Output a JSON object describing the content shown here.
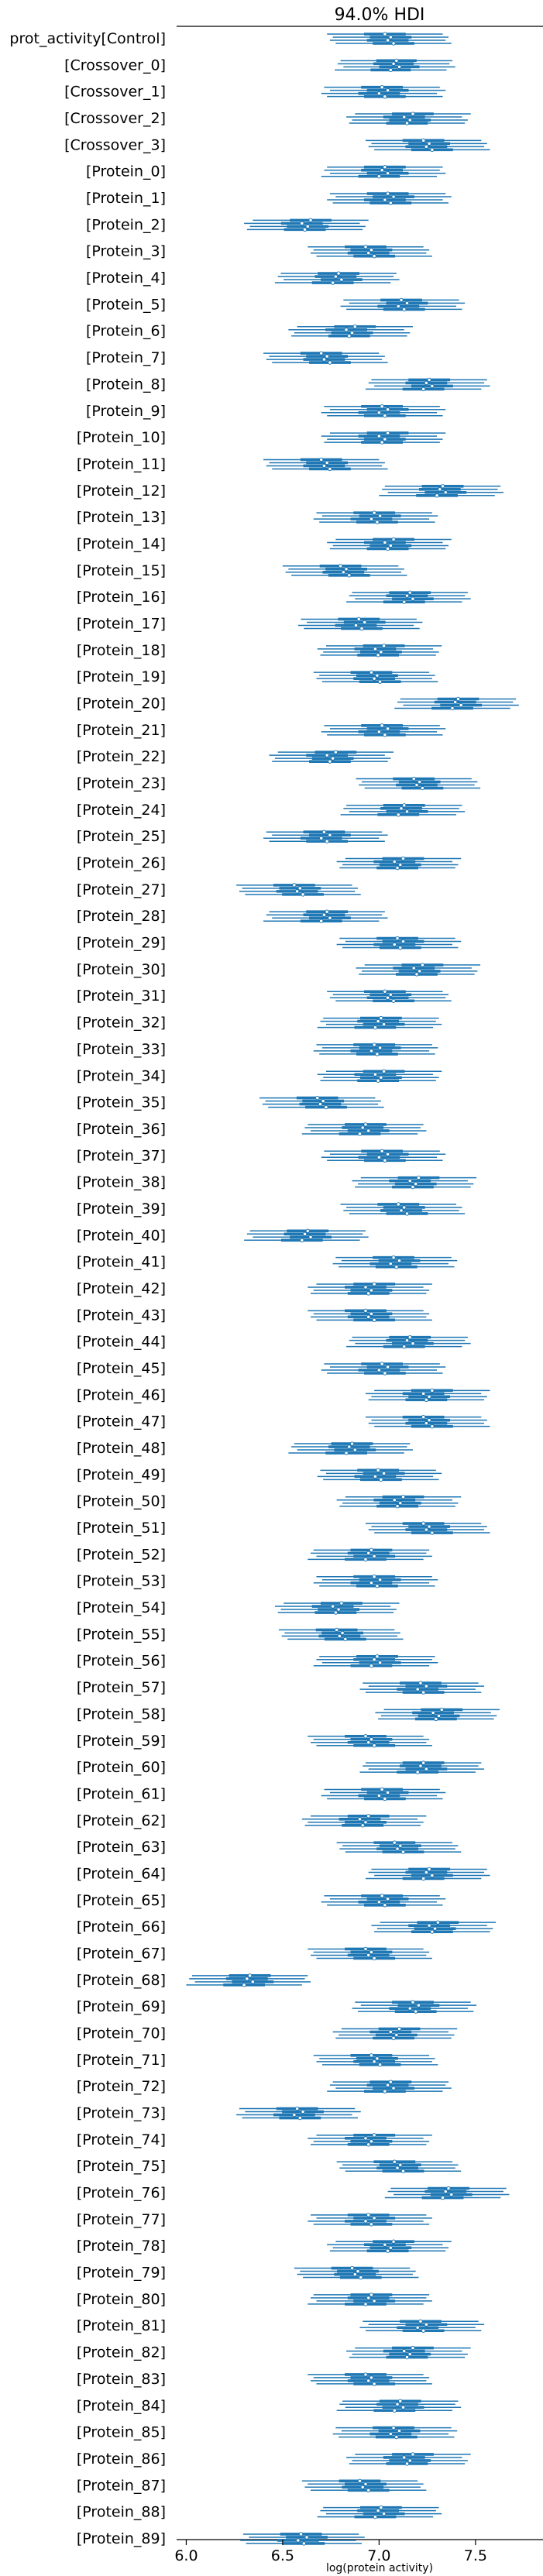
{
  "chart_data": {
    "type": "forest",
    "title": "94.0% HDI",
    "xlabel": "log(protein activity)",
    "ylabel": "",
    "xlim": [
      5.95,
      7.85
    ],
    "xticks": [
      "6.0",
      "6.5",
      "7.0",
      "7.5"
    ],
    "xtick_values": [
      6.0,
      6.5,
      7.0,
      7.5
    ],
    "grid": false,
    "series_color": "#1f77b4",
    "chains_per_row": 4,
    "rows": [
      {
        "label": "prot_activity[Control]",
        "mean": 7.05,
        "hdi": [
          6.75,
          7.35
        ]
      },
      {
        "label": "[Crossover_0]",
        "mean": 7.08,
        "hdi": [
          6.8,
          7.38
        ]
      },
      {
        "label": "[Crossover_1]",
        "mean": 7.02,
        "hdi": [
          6.72,
          7.32
        ]
      },
      {
        "label": "[Crossover_2]",
        "mean": 7.15,
        "hdi": [
          6.85,
          7.45
        ]
      },
      {
        "label": "[Crossover_3]",
        "mean": 7.25,
        "hdi": [
          6.95,
          7.55
        ]
      },
      {
        "label": "[Protein_0]",
        "mean": 7.02,
        "hdi": [
          6.72,
          7.32
        ]
      },
      {
        "label": "[Protein_1]",
        "mean": 7.05,
        "hdi": [
          6.75,
          7.35
        ]
      },
      {
        "label": "[Protein_2]",
        "mean": 6.62,
        "hdi": [
          6.32,
          6.92
        ]
      },
      {
        "label": "[Protein_3]",
        "mean": 6.95,
        "hdi": [
          6.65,
          7.25
        ]
      },
      {
        "label": "[Protein_4]",
        "mean": 6.78,
        "hdi": [
          6.48,
          7.08
        ]
      },
      {
        "label": "[Protein_5]",
        "mean": 7.12,
        "hdi": [
          6.82,
          7.42
        ]
      },
      {
        "label": "[Protein_6]",
        "mean": 6.85,
        "hdi": [
          6.55,
          7.15
        ]
      },
      {
        "label": "[Protein_7]",
        "mean": 6.72,
        "hdi": [
          6.42,
          7.02
        ]
      },
      {
        "label": "[Protein_8]",
        "mean": 7.25,
        "hdi": [
          6.95,
          7.55
        ]
      },
      {
        "label": "[Protein_9]",
        "mean": 7.02,
        "hdi": [
          6.72,
          7.32
        ]
      },
      {
        "label": "[Protein_10]",
        "mean": 7.02,
        "hdi": [
          6.72,
          7.32
        ]
      },
      {
        "label": "[Protein_11]",
        "mean": 6.72,
        "hdi": [
          6.42,
          7.02
        ]
      },
      {
        "label": "[Protein_12]",
        "mean": 7.32,
        "hdi": [
          7.02,
          7.62
        ]
      },
      {
        "label": "[Protein_13]",
        "mean": 6.98,
        "hdi": [
          6.68,
          7.28
        ]
      },
      {
        "label": "[Protein_14]",
        "mean": 7.05,
        "hdi": [
          6.75,
          7.35
        ]
      },
      {
        "label": "[Protein_15]",
        "mean": 6.82,
        "hdi": [
          6.52,
          7.12
        ]
      },
      {
        "label": "[Protein_16]",
        "mean": 7.15,
        "hdi": [
          6.85,
          7.45
        ]
      },
      {
        "label": "[Protein_17]",
        "mean": 6.9,
        "hdi": [
          6.6,
          7.2
        ]
      },
      {
        "label": "[Protein_18]",
        "mean": 7.0,
        "hdi": [
          6.7,
          7.3
        ]
      },
      {
        "label": "[Protein_19]",
        "mean": 6.98,
        "hdi": [
          6.68,
          7.28
        ]
      },
      {
        "label": "[Protein_20]",
        "mean": 7.4,
        "hdi": [
          7.1,
          7.7
        ]
      },
      {
        "label": "[Protein_21]",
        "mean": 7.02,
        "hdi": [
          6.72,
          7.32
        ]
      },
      {
        "label": "[Protein_22]",
        "mean": 6.75,
        "hdi": [
          6.45,
          7.05
        ]
      },
      {
        "label": "[Protein_23]",
        "mean": 7.2,
        "hdi": [
          6.9,
          7.5
        ]
      },
      {
        "label": "[Protein_24]",
        "mean": 7.12,
        "hdi": [
          6.82,
          7.42
        ]
      },
      {
        "label": "[Protein_25]",
        "mean": 6.72,
        "hdi": [
          6.42,
          7.02
        ]
      },
      {
        "label": "[Protein_26]",
        "mean": 7.1,
        "hdi": [
          6.8,
          7.4
        ]
      },
      {
        "label": "[Protein_27]",
        "mean": 6.58,
        "hdi": [
          6.28,
          6.88
        ]
      },
      {
        "label": "[Protein_28]",
        "mean": 6.72,
        "hdi": [
          6.42,
          7.02
        ]
      },
      {
        "label": "[Protein_29]",
        "mean": 7.1,
        "hdi": [
          6.8,
          7.4
        ]
      },
      {
        "label": "[Protein_30]",
        "mean": 7.2,
        "hdi": [
          6.9,
          7.5
        ]
      },
      {
        "label": "[Protein_31]",
        "mean": 7.05,
        "hdi": [
          6.75,
          7.35
        ]
      },
      {
        "label": "[Protein_32]",
        "mean": 7.0,
        "hdi": [
          6.7,
          7.3
        ]
      },
      {
        "label": "[Protein_33]",
        "mean": 6.98,
        "hdi": [
          6.68,
          7.28
        ]
      },
      {
        "label": "[Protein_34]",
        "mean": 7.0,
        "hdi": [
          6.7,
          7.3
        ]
      },
      {
        "label": "[Protein_35]",
        "mean": 6.7,
        "hdi": [
          6.4,
          7.0
        ]
      },
      {
        "label": "[Protein_36]",
        "mean": 6.92,
        "hdi": [
          6.62,
          7.22
        ]
      },
      {
        "label": "[Protein_37]",
        "mean": 7.02,
        "hdi": [
          6.72,
          7.32
        ]
      },
      {
        "label": "[Protein_38]",
        "mean": 7.18,
        "hdi": [
          6.88,
          7.48
        ]
      },
      {
        "label": "[Protein_39]",
        "mean": 7.12,
        "hdi": [
          6.82,
          7.42
        ]
      },
      {
        "label": "[Protein_40]",
        "mean": 6.62,
        "hdi": [
          6.32,
          6.92
        ]
      },
      {
        "label": "[Protein_41]",
        "mean": 7.08,
        "hdi": [
          6.78,
          7.38
        ]
      },
      {
        "label": "[Protein_42]",
        "mean": 6.95,
        "hdi": [
          6.65,
          7.25
        ]
      },
      {
        "label": "[Protein_43]",
        "mean": 6.95,
        "hdi": [
          6.65,
          7.25
        ]
      },
      {
        "label": "[Protein_44]",
        "mean": 7.15,
        "hdi": [
          6.85,
          7.45
        ]
      },
      {
        "label": "[Protein_45]",
        "mean": 7.02,
        "hdi": [
          6.72,
          7.32
        ]
      },
      {
        "label": "[Protein_46]",
        "mean": 7.25,
        "hdi": [
          6.95,
          7.55
        ]
      },
      {
        "label": "[Protein_47]",
        "mean": 7.25,
        "hdi": [
          6.95,
          7.55
        ]
      },
      {
        "label": "[Protein_48]",
        "mean": 6.85,
        "hdi": [
          6.55,
          7.15
        ]
      },
      {
        "label": "[Protein_49]",
        "mean": 7.0,
        "hdi": [
          6.7,
          7.3
        ]
      },
      {
        "label": "[Protein_50]",
        "mean": 7.1,
        "hdi": [
          6.8,
          7.4
        ]
      },
      {
        "label": "[Protein_51]",
        "mean": 7.25,
        "hdi": [
          6.95,
          7.55
        ]
      },
      {
        "label": "[Protein_52]",
        "mean": 6.95,
        "hdi": [
          6.65,
          7.25
        ]
      },
      {
        "label": "[Protein_53]",
        "mean": 6.98,
        "hdi": [
          6.68,
          7.28
        ]
      },
      {
        "label": "[Protein_54]",
        "mean": 6.78,
        "hdi": [
          6.48,
          7.08
        ]
      },
      {
        "label": "[Protein_55]",
        "mean": 6.8,
        "hdi": [
          6.5,
          7.1
        ]
      },
      {
        "label": "[Protein_56]",
        "mean": 6.98,
        "hdi": [
          6.68,
          7.28
        ]
      },
      {
        "label": "[Protein_57]",
        "mean": 7.22,
        "hdi": [
          6.92,
          7.52
        ]
      },
      {
        "label": "[Protein_58]",
        "mean": 7.3,
        "hdi": [
          7.0,
          7.6
        ]
      },
      {
        "label": "[Protein_59]",
        "mean": 6.95,
        "hdi": [
          6.65,
          7.25
        ]
      },
      {
        "label": "[Protein_60]",
        "mean": 7.22,
        "hdi": [
          6.92,
          7.52
        ]
      },
      {
        "label": "[Protein_61]",
        "mean": 7.02,
        "hdi": [
          6.72,
          7.32
        ]
      },
      {
        "label": "[Protein_62]",
        "mean": 6.92,
        "hdi": [
          6.62,
          7.22
        ]
      },
      {
        "label": "[Protein_63]",
        "mean": 7.1,
        "hdi": [
          6.8,
          7.4
        ]
      },
      {
        "label": "[Protein_64]",
        "mean": 7.25,
        "hdi": [
          6.95,
          7.55
        ]
      },
      {
        "label": "[Protein_65]",
        "mean": 7.02,
        "hdi": [
          6.72,
          7.32
        ]
      },
      {
        "label": "[Protein_66]",
        "mean": 7.28,
        "hdi": [
          6.98,
          7.58
        ]
      },
      {
        "label": "[Protein_67]",
        "mean": 6.95,
        "hdi": [
          6.65,
          7.25
        ]
      },
      {
        "label": "[Protein_68]",
        "mean": 6.32,
        "hdi": [
          6.02,
          6.62
        ]
      },
      {
        "label": "[Protein_69]",
        "mean": 7.18,
        "hdi": [
          6.88,
          7.48
        ]
      },
      {
        "label": "[Protein_70]",
        "mean": 7.08,
        "hdi": [
          6.78,
          7.38
        ]
      },
      {
        "label": "[Protein_71]",
        "mean": 6.98,
        "hdi": [
          6.68,
          7.28
        ]
      },
      {
        "label": "[Protein_72]",
        "mean": 7.05,
        "hdi": [
          6.75,
          7.35
        ]
      },
      {
        "label": "[Protein_73]",
        "mean": 6.58,
        "hdi": [
          6.28,
          6.88
        ]
      },
      {
        "label": "[Protein_74]",
        "mean": 6.95,
        "hdi": [
          6.65,
          7.25
        ]
      },
      {
        "label": "[Protein_75]",
        "mean": 7.1,
        "hdi": [
          6.8,
          7.4
        ]
      },
      {
        "label": "[Protein_76]",
        "mean": 7.35,
        "hdi": [
          7.05,
          7.65
        ]
      },
      {
        "label": "[Protein_77]",
        "mean": 6.95,
        "hdi": [
          6.65,
          7.25
        ]
      },
      {
        "label": "[Protein_78]",
        "mean": 7.05,
        "hdi": [
          6.75,
          7.35
        ]
      },
      {
        "label": "[Protein_79]",
        "mean": 6.88,
        "hdi": [
          6.58,
          7.18
        ]
      },
      {
        "label": "[Protein_80]",
        "mean": 6.95,
        "hdi": [
          6.65,
          7.25
        ]
      },
      {
        "label": "[Protein_81]",
        "mean": 7.22,
        "hdi": [
          6.92,
          7.52
        ]
      },
      {
        "label": "[Protein_82]",
        "mean": 7.15,
        "hdi": [
          6.85,
          7.45
        ]
      },
      {
        "label": "[Protein_83]",
        "mean": 6.95,
        "hdi": [
          6.65,
          7.25
        ]
      },
      {
        "label": "[Protein_84]",
        "mean": 7.1,
        "hdi": [
          6.8,
          7.4
        ]
      },
      {
        "label": "[Protein_85]",
        "mean": 7.08,
        "hdi": [
          6.78,
          7.38
        ]
      },
      {
        "label": "[Protein_86]",
        "mean": 7.15,
        "hdi": [
          6.85,
          7.45
        ]
      },
      {
        "label": "[Protein_87]",
        "mean": 6.92,
        "hdi": [
          6.62,
          7.22
        ]
      },
      {
        "label": "[Protein_88]",
        "mean": 7.0,
        "hdi": [
          6.7,
          7.3
        ]
      },
      {
        "label": "[Protein_89]",
        "mean": 6.6,
        "hdi": [
          6.3,
          6.9
        ]
      }
    ]
  }
}
